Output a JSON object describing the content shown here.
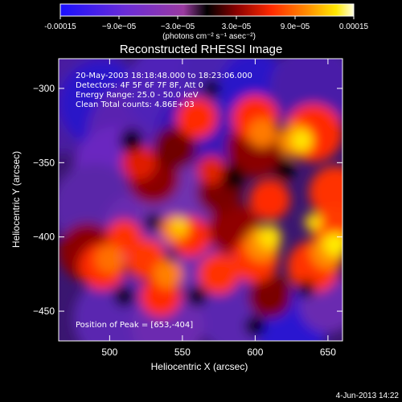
{
  "chart_data": {
    "type": "heatmap",
    "title": "Reconstructed RHESSI Image",
    "xlabel": "Heliocentric X (arcsec)",
    "ylabel": "Heliocentric Y (arcsec)",
    "xlim": [
      465,
      660
    ],
    "ylim": [
      -470,
      -280
    ],
    "x_ticks": [
      500,
      550,
      600,
      650
    ],
    "y_ticks": [
      -300,
      -350,
      -400,
      -450
    ],
    "colorbar": {
      "range": [
        -0.00015,
        0.00015
      ],
      "tick_labels": [
        "-0.00015",
        "−9.0e−05",
        "−3.0e−05",
        "3.0e−05",
        "9.0e−05",
        "0.00015"
      ],
      "unit_label": "(photons cm⁻² s⁻¹ asec⁻²)",
      "colors": [
        "#1a10ff",
        "#6a2cd8",
        "#9a3aa0",
        "#000000",
        "#8a0000",
        "#ff2a00",
        "#ff8c00",
        "#ffe800",
        "#ffffe0"
      ]
    },
    "annotations": [
      "20-May-2003 18:18:48.000 to 18:23:06.000",
      "Detectors: 4F 5F 6F 7F 8F, Att 0",
      "Energy Range: 25.0 - 50.0 keV",
      "Clean     Total counts: 4.86E+03"
    ],
    "peak_label": "Position of Peak = [653,-404]",
    "peak": [
      653,
      -404
    ],
    "grid": false,
    "legend": "none"
  },
  "footer": {
    "date": "4-Jun-2013 14:22"
  }
}
